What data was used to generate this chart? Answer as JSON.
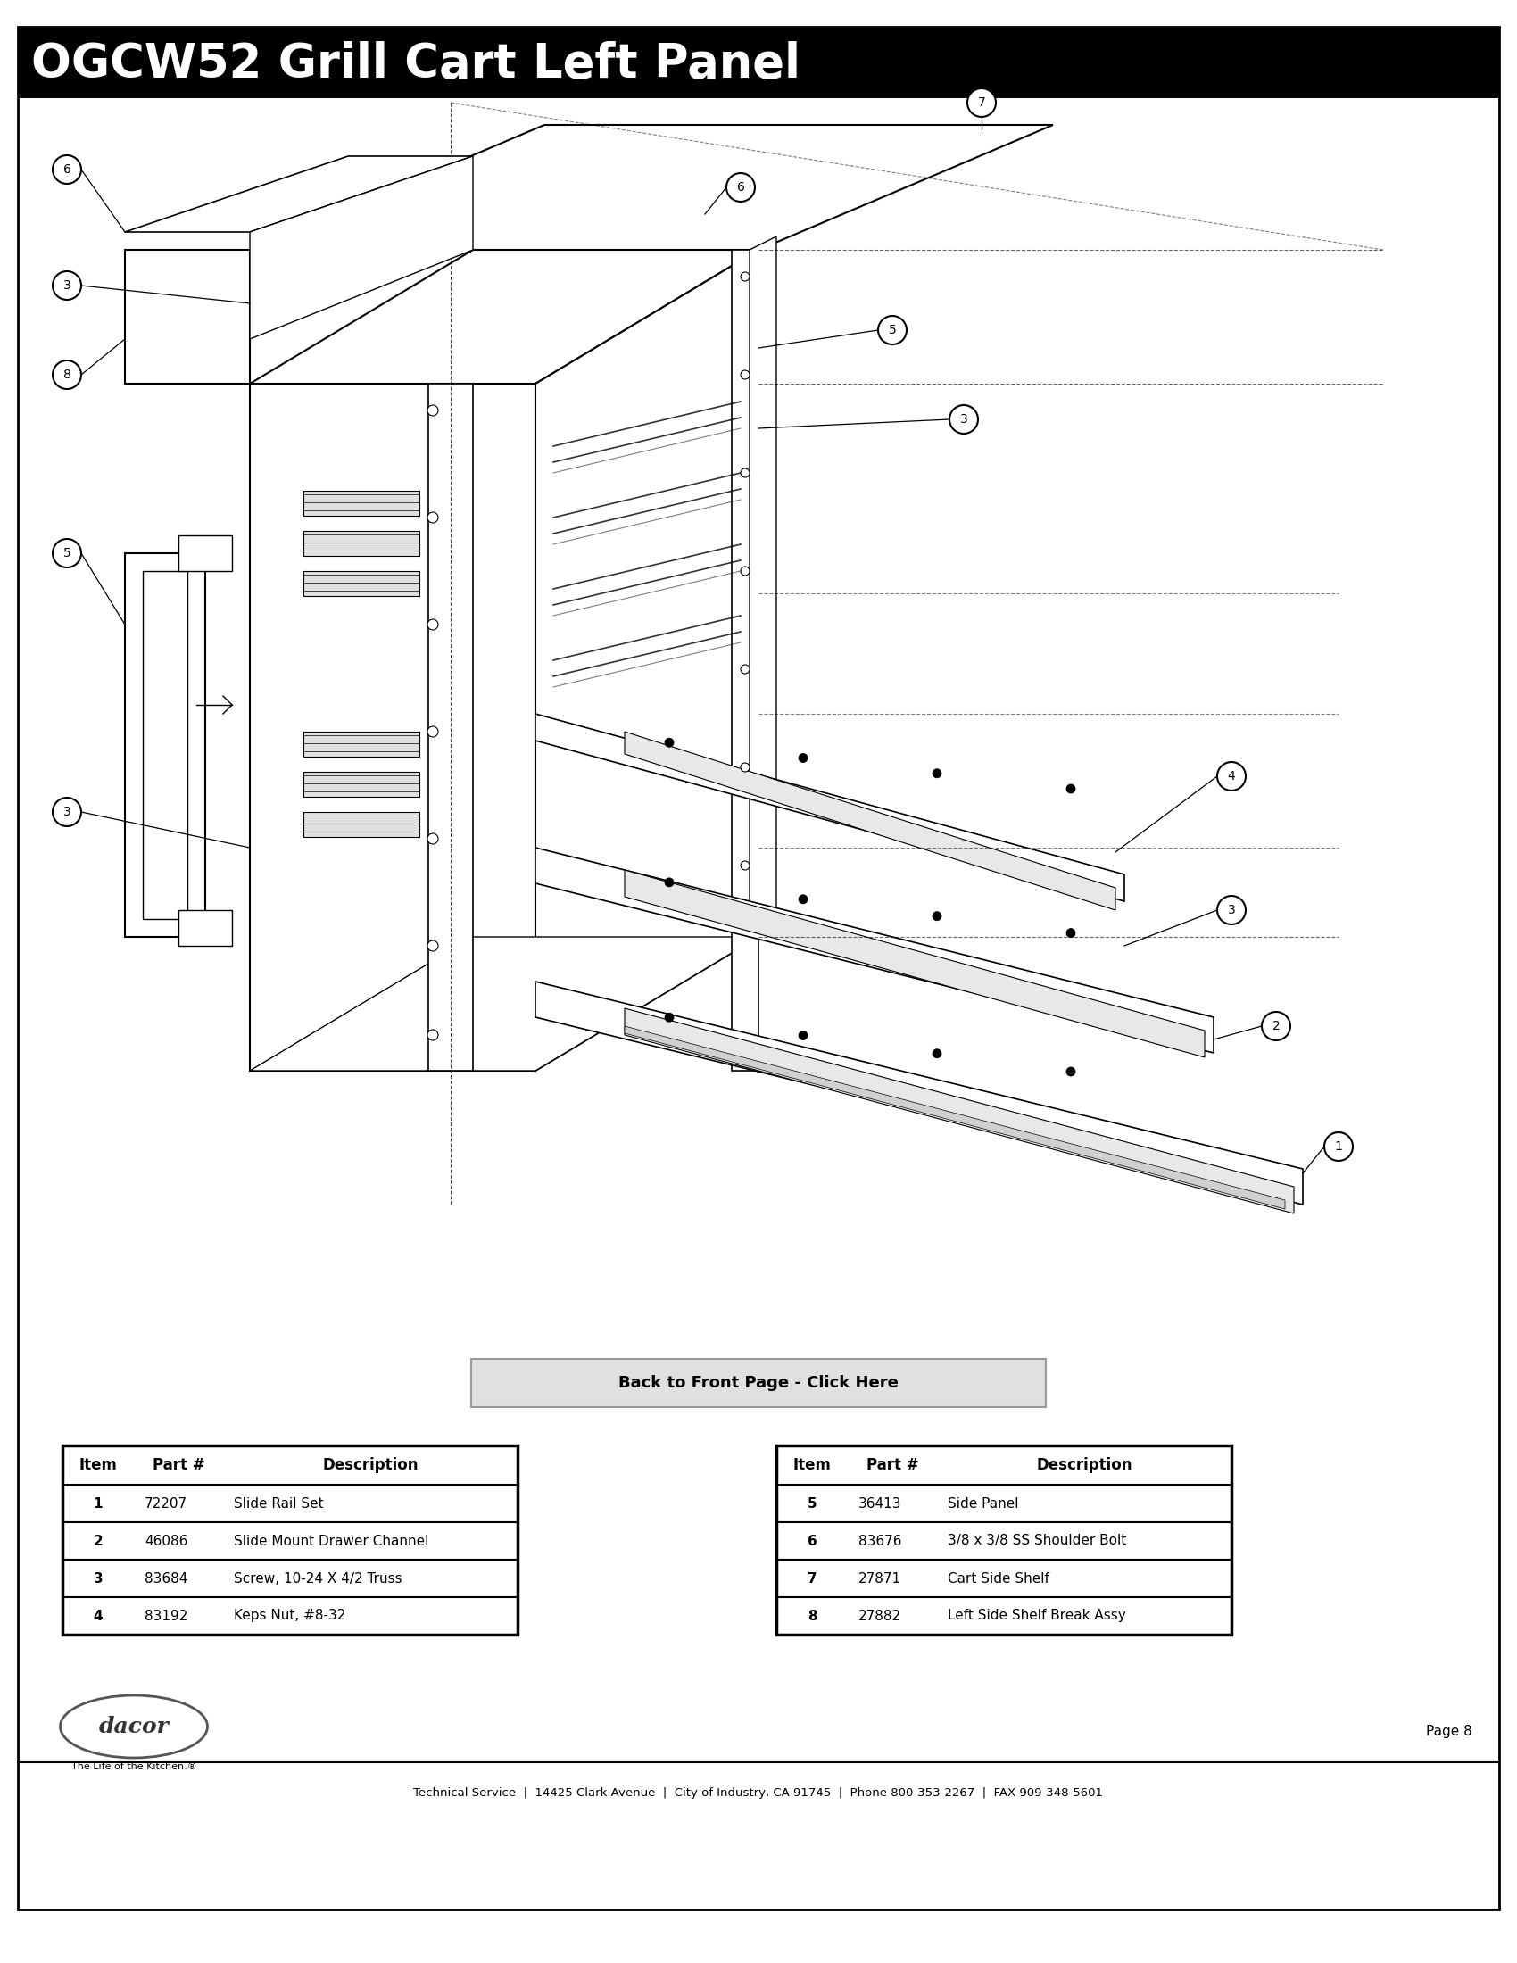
{
  "title": "OGCW52 Grill Cart Left Panel",
  "title_bg": "#000000",
  "title_color": "#ffffff",
  "page_number": "Page 8",
  "footer_line": "Technical Service  |  14425 Clark Avenue  |  City of Industry, CA 91745  |  Phone 800-353-2267  |  FAX 909-348-5601",
  "button_text": "Back to Front Page - Click Here",
  "table1_headers": [
    "Item",
    "Part #",
    "Description"
  ],
  "table1_rows": [
    [
      "1",
      "72207",
      "Slide Rail Set"
    ],
    [
      "2",
      "46086",
      "Slide Mount Drawer Channel"
    ],
    [
      "3",
      "83684",
      "Screw, 10-24 X 4/2 Truss"
    ],
    [
      "4",
      "83192",
      "Keps Nut, #8-32"
    ]
  ],
  "table2_headers": [
    "Item",
    "Part #",
    "Description"
  ],
  "table2_rows": [
    [
      "5",
      "36413",
      "Side Panel"
    ],
    [
      "6",
      "83676",
      "3/8 x 3/8 SS Shoulder Bolt"
    ],
    [
      "7",
      "27871",
      "Cart Side Shelf"
    ],
    [
      "8",
      "27882",
      "Left Side Shelf Break Assy"
    ]
  ],
  "bg_color": "#ffffff"
}
